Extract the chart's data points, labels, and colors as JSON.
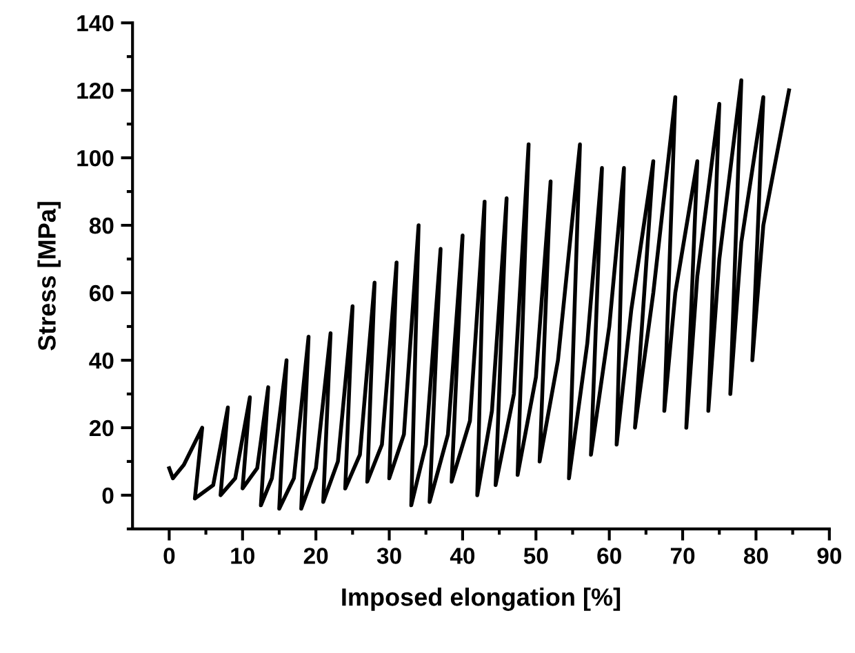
{
  "chart_data": {
    "type": "line",
    "xlabel": "Imposed elongation [%]",
    "ylabel": "Stress [MPa]",
    "xlim": [
      -5,
      90
    ],
    "ylim": [
      -10,
      140
    ],
    "xticks": [
      0,
      {
        "value": 5,
        "label": null
      },
      10,
      {
        "value": 15,
        "label": null
      },
      20,
      {
        "value": 25,
        "label": null
      },
      30,
      {
        "value": 35,
        "label": null
      },
      40,
      {
        "value": 45,
        "label": null
      },
      50,
      {
        "value": 55,
        "label": null
      },
      60,
      {
        "value": 65,
        "label": null
      },
      70,
      {
        "value": 75,
        "label": null
      },
      80,
      {
        "value": 85,
        "label": null
      },
      90
    ],
    "yticks": [
      {
        "value": -10,
        "label": null
      },
      0,
      {
        "value": 10,
        "label": null
      },
      20,
      {
        "value": 30,
        "label": null
      },
      40,
      {
        "value": 50,
        "label": null
      },
      60,
      {
        "value": 70,
        "label": null
      },
      80,
      {
        "value": 90,
        "label": null
      },
      100,
      {
        "value": 110,
        "label": null
      },
      120,
      {
        "value": 130,
        "label": null
      },
      140
    ],
    "grid": false,
    "legend": false,
    "marker": "none",
    "line_style": "solid",
    "series": [
      {
        "color": "#000000",
        "x": [
          0,
          0.5,
          2,
          4.5,
          3.5,
          6,
          8,
          7,
          9,
          11,
          10,
          12,
          13.5,
          12.5,
          14,
          16,
          15,
          17,
          19,
          18,
          20,
          22,
          21,
          23,
          25,
          24,
          26,
          28,
          27,
          29,
          31,
          30,
          32,
          34,
          33,
          35,
          37,
          35.5,
          38,
          40,
          38.5,
          41,
          43,
          42,
          44,
          46,
          44.5,
          47,
          49,
          47.5,
          50,
          52,
          50.5,
          53,
          56,
          54.5,
          57,
          59,
          57.5,
          60,
          62,
          61,
          63,
          66,
          63.5,
          66,
          69,
          67.5,
          69,
          72,
          70.5,
          72,
          75,
          73.5,
          75,
          78,
          76.5,
          78,
          81,
          79.5,
          81,
          84.5
        ],
        "values": [
          8,
          5,
          9,
          20,
          -1,
          3,
          26,
          0,
          5,
          29,
          2,
          8,
          32,
          -3,
          5,
          40,
          -4,
          5,
          47,
          -4,
          8,
          48,
          -2,
          10,
          56,
          2,
          12,
          63,
          4,
          15,
          69,
          5,
          18,
          80,
          -3,
          15,
          73,
          -2,
          18,
          77,
          4,
          22,
          87,
          0,
          25,
          88,
          3,
          30,
          104,
          6,
          35,
          93,
          10,
          40,
          104,
          5,
          45,
          97,
          12,
          50,
          97,
          15,
          55,
          99,
          20,
          60,
          118,
          25,
          60,
          99,
          20,
          65,
          116,
          25,
          70,
          123,
          30,
          75,
          118,
          40,
          80,
          120
        ]
      }
    ]
  }
}
